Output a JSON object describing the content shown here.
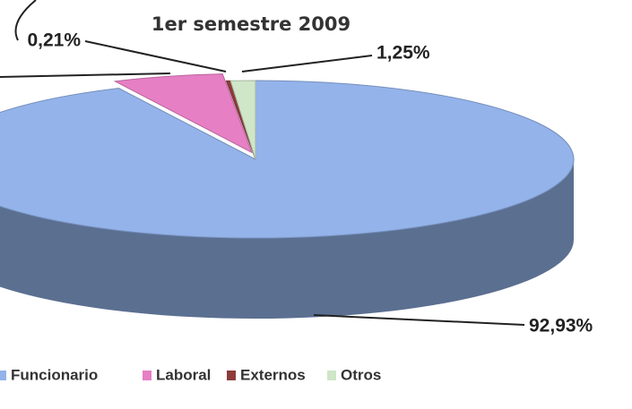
{
  "chart_data": {
    "type": "pie3d",
    "title": "1er semestre 2009",
    "categories": [
      "Funcionario",
      "Laboral",
      "Externos",
      "Otros"
    ],
    "values": [
      92.93,
      5.61,
      0.21,
      1.25
    ],
    "value_labels": [
      "92,93%",
      null,
      "0,21%",
      "1,25%"
    ],
    "colors": [
      "#93b3ea",
      "#e67fc4",
      "#8e3b3b",
      "#cfe6c8"
    ],
    "legend": "bottom"
  }
}
